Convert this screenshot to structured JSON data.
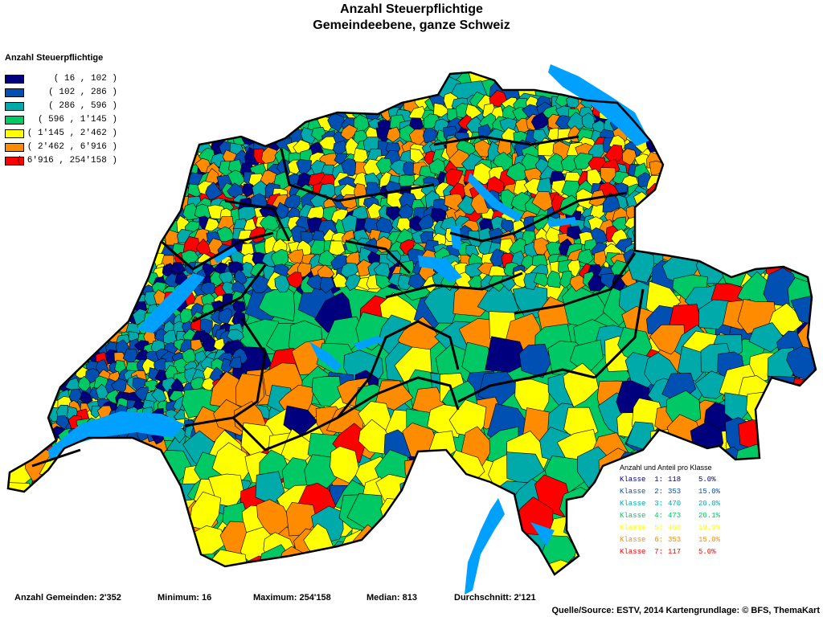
{
  "title": {
    "line1": "Anzahl Steuerpflichtige",
    "line2": "Gemeindeebene, ganze Schweiz"
  },
  "legend": {
    "title": "Anzahl Steuerpflichtige",
    "classes": [
      {
        "range": "( 16 , 102 )",
        "color": "#00007F"
      },
      {
        "range": "( 102 , 286 )",
        "color": "#0050B4"
      },
      {
        "range": "( 286 , 596 )",
        "color": "#00AAAA"
      },
      {
        "range": "( 596 , 1'145 )",
        "color": "#00C864"
      },
      {
        "range": "( 1'145 , 2'462 )",
        "color": "#FFFF00"
      },
      {
        "range": "( 2'462 , 6'916 )",
        "color": "#FF8C00"
      },
      {
        "range": "( 6'916 , 254'158 )",
        "color": "#FF0000"
      }
    ]
  },
  "class_stats": {
    "title": "Anzahl und Anteil pro Klasse",
    "rows": [
      {
        "label": "Klasse  1:",
        "count": "118",
        "share": "5.0%",
        "color": "#00007F"
      },
      {
        "label": "Klasse  2:",
        "count": "353",
        "share": "15.0%",
        "color": "#0050B4"
      },
      {
        "label": "Klasse  3:",
        "count": "470",
        "share": "20.0%",
        "color": "#00AAAA"
      },
      {
        "label": "Klasse  4:",
        "count": "473",
        "share": "20.1%",
        "color": "#00C864"
      },
      {
        "label": "Klasse  5:",
        "count": "468",
        "share": "19.9%",
        "color": "#FFFF00"
      },
      {
        "label": "Klasse  6:",
        "count": "353",
        "share": "15.0%",
        "color": "#FF8C00"
      },
      {
        "label": "Klasse  7:",
        "count": "117",
        "share": "5.0%",
        "color": "#FF0000"
      }
    ]
  },
  "footer": {
    "gemeinden": "Anzahl Gemeinden: 2'352",
    "minimum": "Minimum: 16",
    "maximum": "Maximum: 254'158",
    "median": "Median: 813",
    "durchschnitt": "Durchschnitt: 2'121"
  },
  "source": "Quelle/Source: ESTV, 2014 Kartengrundlage: © BFS, ThemaKart",
  "map_colors": {
    "lake": "#00A0FF",
    "border": "#000000"
  }
}
